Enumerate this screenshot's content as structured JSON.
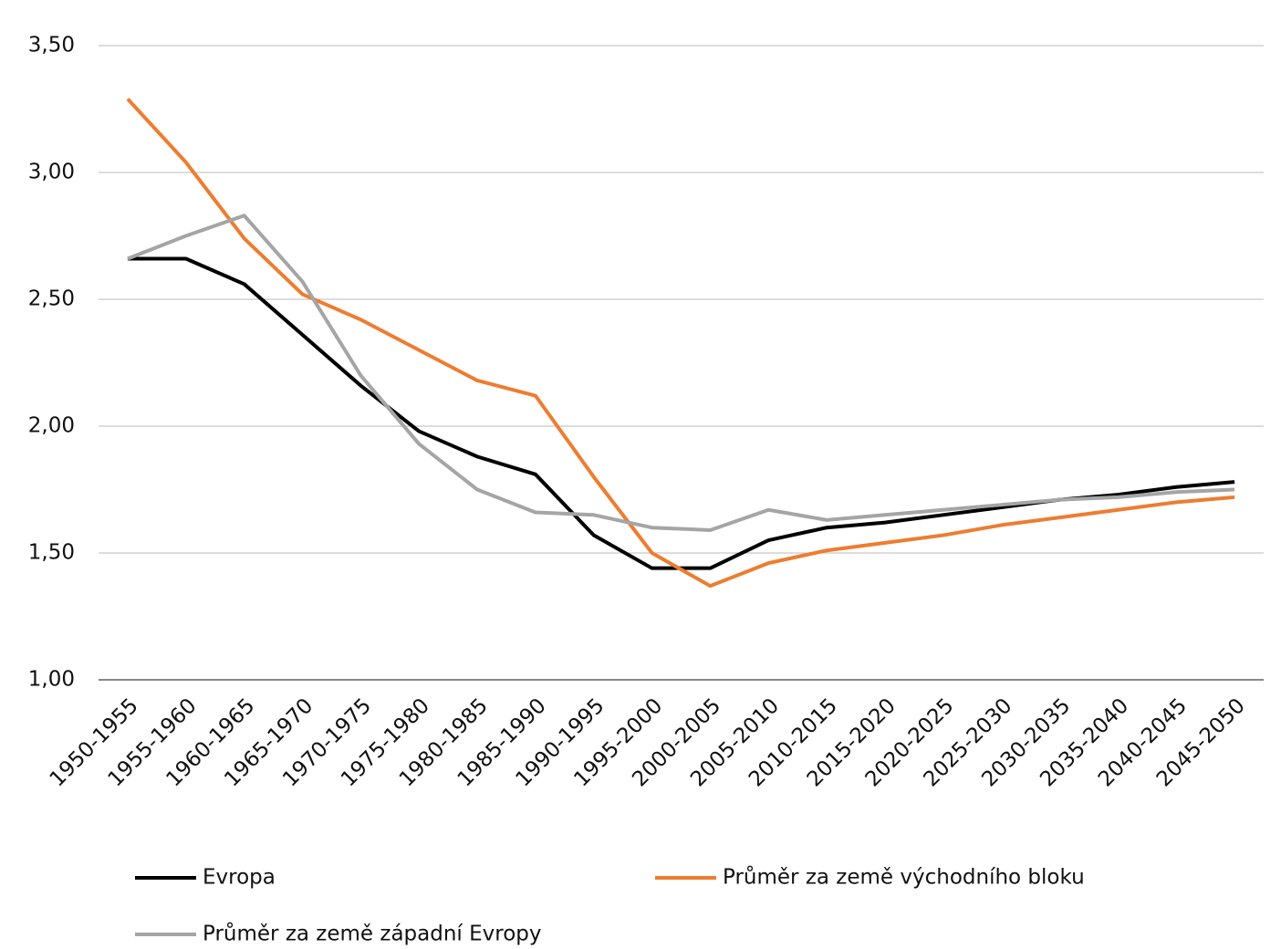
{
  "chart_data": {
    "type": "line",
    "categories": [
      "1950-1955",
      "1955-1960",
      "1960-1965",
      "1965-1970",
      "1970-1975",
      "1975-1980",
      "1980-1985",
      "1985-1990",
      "1990-1995",
      "1995-2000",
      "2000-2005",
      "2005-2010",
      "2010-2015",
      "2015-2020",
      "2020-2025",
      "2025-2030",
      "2030-2035",
      "2035-2040",
      "2040-2045",
      "2045-2050"
    ],
    "series": [
      {
        "name": "Evropa",
        "color": "#000000",
        "values": [
          2.66,
          2.66,
          2.56,
          2.36,
          2.16,
          1.98,
          1.88,
          1.81,
          1.57,
          1.44,
          1.44,
          1.55,
          1.6,
          1.62,
          1.65,
          1.68,
          1.71,
          1.73,
          1.76,
          1.78
        ]
      },
      {
        "name": "Průměr za země východního bloku",
        "color": "#ed7d31",
        "values": [
          3.29,
          3.04,
          2.74,
          2.52,
          2.42,
          2.3,
          2.18,
          2.12,
          1.8,
          1.5,
          1.37,
          1.46,
          1.51,
          1.54,
          1.57,
          1.61,
          1.64,
          1.67,
          1.7,
          1.72
        ]
      },
      {
        "name": "Průměr za země západní Evropy",
        "color": "#a5a5a5",
        "values": [
          2.66,
          2.75,
          2.83,
          2.57,
          2.2,
          1.93,
          1.75,
          1.66,
          1.65,
          1.6,
          1.59,
          1.67,
          1.63,
          1.65,
          1.67,
          1.69,
          1.71,
          1.72,
          1.74,
          1.75
        ]
      }
    ],
    "ylim": [
      1,
      3.5
    ],
    "yticks": [
      {
        "value": 1,
        "label": "1,00"
      },
      {
        "value": 1.5,
        "label": "1,50"
      },
      {
        "value": 2,
        "label": "2,00"
      },
      {
        "value": 2.5,
        "label": "2,50"
      },
      {
        "value": 3,
        "label": "3,00"
      },
      {
        "value": 3.5,
        "label": "3,50"
      }
    ],
    "grid": true
  }
}
